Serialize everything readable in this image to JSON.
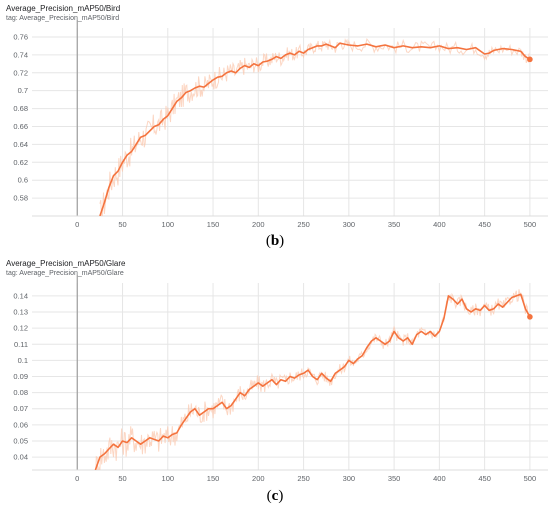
{
  "panels": [
    {
      "title": "Average_Precision_mAP50/Bird",
      "tag": "tag: Average_Precision_mAP50/Bird",
      "caption_letter": "b",
      "caption_open": "(",
      "caption_close": ")"
    },
    {
      "title": "Average_Precision_mAP50/Glare",
      "tag": "tag: Average_Precision_mAP50/Glare",
      "caption_letter": "c",
      "caption_open": "(",
      "caption_close": ")"
    }
  ],
  "colors": {
    "line": "#f4733e",
    "raw": "#fbc4aa",
    "grid": "#e6e6e6",
    "axis": "#9e9e9e"
  },
  "chart_data": [
    {
      "type": "line",
      "title": "Average_Precision_mAP50/Bird",
      "xlabel": "",
      "ylabel": "",
      "xlim": [
        -50,
        520
      ],
      "ylim": [
        0.56,
        0.77
      ],
      "x_ticks": [
        0,
        50,
        100,
        150,
        200,
        250,
        300,
        350,
        400,
        450,
        500
      ],
      "y_ticks": [
        "0.58",
        "0.6",
        "0.62",
        "0.64",
        "0.66",
        "0.68",
        "0.7",
        "0.72",
        "0.74",
        "0.76"
      ],
      "grid": true,
      "series": [
        {
          "x": [
            25,
            30,
            35,
            40,
            45,
            50,
            55,
            60,
            65,
            70,
            75,
            80,
            85,
            90,
            95,
            100,
            105,
            110,
            115,
            120,
            125,
            130,
            135,
            140,
            145,
            150,
            155,
            160,
            165,
            170,
            175,
            180,
            185,
            190,
            195,
            200,
            205,
            210,
            215,
            220,
            225,
            230,
            235,
            240,
            245,
            250,
            255,
            260,
            265,
            270,
            275,
            280,
            285,
            290,
            295,
            300,
            310,
            320,
            330,
            340,
            350,
            360,
            370,
            380,
            390,
            400,
            410,
            420,
            430,
            440,
            450,
            455,
            460,
            470,
            480,
            490,
            495,
            500
          ],
          "y": [
            0.56,
            0.575,
            0.592,
            0.605,
            0.61,
            0.62,
            0.628,
            0.632,
            0.64,
            0.648,
            0.65,
            0.655,
            0.66,
            0.662,
            0.668,
            0.672,
            0.68,
            0.688,
            0.692,
            0.698,
            0.7,
            0.703,
            0.705,
            0.704,
            0.708,
            0.712,
            0.715,
            0.716,
            0.72,
            0.722,
            0.72,
            0.725,
            0.728,
            0.726,
            0.73,
            0.728,
            0.732,
            0.733,
            0.735,
            0.738,
            0.736,
            0.74,
            0.742,
            0.74,
            0.744,
            0.742,
            0.746,
            0.748,
            0.75,
            0.75,
            0.752,
            0.75,
            0.748,
            0.753,
            0.752,
            0.751,
            0.75,
            0.752,
            0.749,
            0.751,
            0.748,
            0.75,
            0.748,
            0.749,
            0.748,
            0.75,
            0.747,
            0.748,
            0.746,
            0.748,
            0.741,
            0.742,
            0.745,
            0.747,
            0.746,
            0.744,
            0.738,
            0.735
          ]
        }
      ]
    },
    {
      "type": "line",
      "title": "Average_Precision_mAP50/Glare",
      "xlabel": "",
      "ylabel": "",
      "xlim": [
        -50,
        520
      ],
      "ylim": [
        0.032,
        0.148
      ],
      "x_ticks": [
        0,
        50,
        100,
        150,
        200,
        250,
        300,
        350,
        400,
        450,
        500
      ],
      "y_ticks": [
        "0.04",
        "0.05",
        "0.06",
        "0.07",
        "0.08",
        "0.09",
        "0.1",
        "0.11",
        "0.12",
        "0.13",
        "0.14"
      ],
      "grid": true,
      "series": [
        {
          "x": [
            20,
            25,
            30,
            35,
            40,
            45,
            50,
            55,
            60,
            65,
            70,
            75,
            80,
            85,
            90,
            95,
            100,
            105,
            110,
            115,
            120,
            125,
            130,
            135,
            140,
            145,
            150,
            155,
            160,
            165,
            170,
            175,
            180,
            185,
            190,
            195,
            200,
            205,
            210,
            215,
            220,
            225,
            230,
            235,
            240,
            245,
            250,
            255,
            260,
            265,
            270,
            275,
            280,
            285,
            290,
            295,
            300,
            305,
            310,
            315,
            320,
            325,
            330,
            335,
            340,
            345,
            350,
            355,
            360,
            365,
            370,
            375,
            380,
            385,
            390,
            395,
            400,
            405,
            410,
            415,
            420,
            425,
            430,
            435,
            440,
            445,
            450,
            455,
            460,
            465,
            470,
            475,
            480,
            485,
            490,
            495,
            500
          ],
          "y": [
            0.032,
            0.04,
            0.042,
            0.045,
            0.048,
            0.046,
            0.05,
            0.049,
            0.052,
            0.05,
            0.048,
            0.05,
            0.052,
            0.051,
            0.05,
            0.053,
            0.052,
            0.054,
            0.055,
            0.06,
            0.064,
            0.068,
            0.07,
            0.066,
            0.068,
            0.07,
            0.07,
            0.072,
            0.074,
            0.07,
            0.072,
            0.076,
            0.08,
            0.078,
            0.082,
            0.084,
            0.086,
            0.084,
            0.086,
            0.088,
            0.085,
            0.088,
            0.087,
            0.09,
            0.089,
            0.091,
            0.092,
            0.094,
            0.09,
            0.088,
            0.092,
            0.089,
            0.087,
            0.092,
            0.094,
            0.096,
            0.1,
            0.098,
            0.101,
            0.103,
            0.108,
            0.112,
            0.114,
            0.112,
            0.11,
            0.112,
            0.118,
            0.114,
            0.112,
            0.114,
            0.11,
            0.116,
            0.118,
            0.116,
            0.118,
            0.115,
            0.118,
            0.126,
            0.14,
            0.138,
            0.135,
            0.138,
            0.132,
            0.13,
            0.132,
            0.131,
            0.134,
            0.131,
            0.132,
            0.135,
            0.133,
            0.136,
            0.139,
            0.14,
            0.141,
            0.132,
            0.127
          ]
        }
      ]
    }
  ]
}
